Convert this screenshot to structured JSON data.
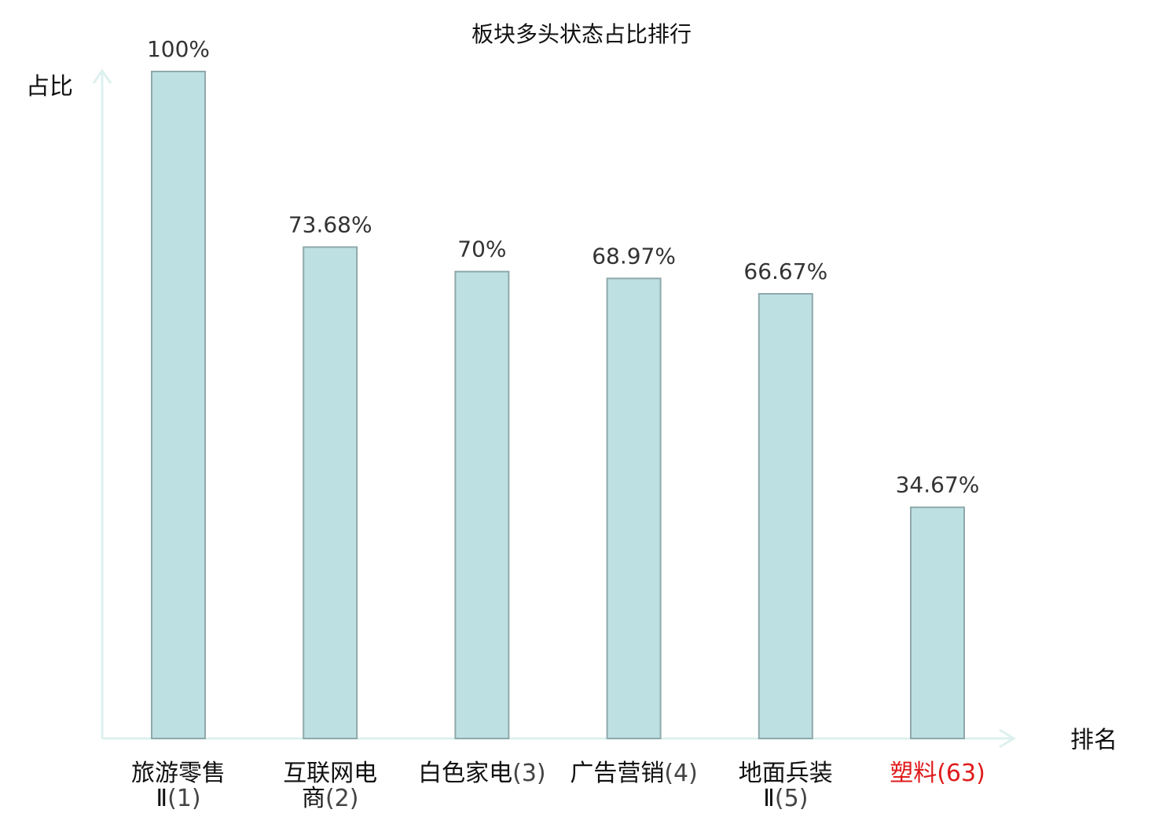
{
  "chart_data": {
    "type": "bar",
    "title": "板块多头状态占比排行",
    "ylabel": "占比",
    "xlabel": "排名",
    "ylim": [
      0,
      100
    ],
    "categories": [
      {
        "lines": [
          {
            "name": "旅游零售",
            "rank": ""
          },
          {
            "name": "Ⅱ",
            "rank": "(1)"
          }
        ],
        "highlight": false
      },
      {
        "lines": [
          {
            "name": "互联网电",
            "rank": ""
          },
          {
            "name": "商",
            "rank": "(2)"
          }
        ],
        "highlight": false
      },
      {
        "lines": [
          {
            "name": "白色家电",
            "rank": "(3)"
          }
        ],
        "highlight": false
      },
      {
        "lines": [
          {
            "name": "广告营销",
            "rank": "(4)"
          }
        ],
        "highlight": false
      },
      {
        "lines": [
          {
            "name": "地面兵装",
            "rank": ""
          },
          {
            "name": "Ⅱ",
            "rank": "(5)"
          }
        ],
        "highlight": false
      },
      {
        "lines": [
          {
            "name": "塑料",
            "rank": "(63)"
          }
        ],
        "highlight": true
      }
    ],
    "values": [
      100,
      73.68,
      70,
      68.97,
      66.67,
      34.67
    ],
    "value_labels": [
      "100%",
      "73.68%",
      "70%",
      "68.97%",
      "66.67%",
      "34.67%"
    ],
    "grid": false,
    "legend": "none"
  },
  "colors": {
    "bar_fill": "#bde0e3",
    "bar_stroke": "#8fa8ab",
    "axis": "#ddf1ef",
    "text": "#111111",
    "rank_text": "#444444",
    "highlight": "#e01b1b"
  }
}
